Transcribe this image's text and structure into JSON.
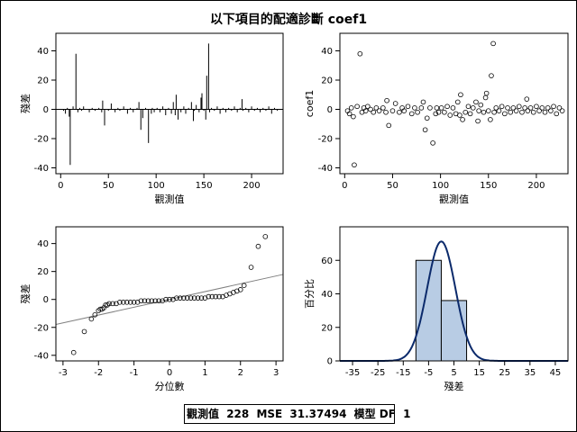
{
  "title": "以下項目的配適診斷 coef1",
  "footer": {
    "obs_label": "觀測值",
    "obs_value": "228",
    "mse_label": "MSE",
    "mse_value": "31.37494",
    "df_label": "模型 DF",
    "df_value": "1"
  },
  "colors": {
    "axis": "#000000",
    "qq_line": "#808080",
    "hist_fill": "#b8cce4",
    "hist_stroke": "#000000",
    "normal_curve": "#0b2a6b"
  },
  "chart_data": [
    {
      "type": "needle",
      "name": "residual-by-observation",
      "xlabel": "觀測值",
      "ylabel": "殘差",
      "xlim": [
        -5,
        233
      ],
      "ylim": [
        -44,
        52
      ],
      "xticks": [
        0,
        50,
        100,
        150,
        200
      ],
      "yticks": [
        -40,
        -20,
        0,
        20,
        40
      ],
      "x": [
        3,
        5,
        7,
        9,
        10,
        13,
        16,
        18,
        20,
        22,
        24,
        27,
        30,
        33,
        36,
        40,
        43,
        44,
        46,
        50,
        53,
        57,
        60,
        62,
        66,
        70,
        73,
        76,
        80,
        82,
        84,
        86,
        89,
        92,
        95,
        96,
        98,
        101,
        104,
        107,
        110,
        113,
        116,
        118,
        120,
        121,
        123,
        126,
        129,
        131,
        134,
        137,
        139,
        140,
        142,
        145,
        147,
        148,
        150,
        152,
        153,
        155,
        156,
        158,
        161,
        164,
        167,
        170,
        173,
        176,
        179,
        182,
        185,
        188,
        190,
        191,
        194,
        197,
        200,
        203,
        206,
        209,
        212,
        215,
        218,
        221,
        224,
        227
      ],
      "values": [
        -1,
        -3,
        1,
        -5,
        -38,
        2,
        38,
        -2,
        1,
        -1,
        2,
        0,
        -2,
        1,
        -1,
        1,
        -2,
        6,
        -11,
        -1,
        4,
        -2,
        1,
        -1,
        2,
        -3,
        1,
        -2,
        1,
        5,
        -14,
        -6,
        1,
        -23,
        -3,
        1,
        -2,
        1,
        -2,
        2,
        -4,
        1,
        -3,
        5,
        -4,
        10,
        -7,
        -2,
        2,
        -3,
        1,
        5,
        -8,
        -1,
        3,
        -2,
        8,
        11,
        -1,
        -7,
        23,
        45,
        -2,
        1,
        -1,
        2,
        -3,
        1,
        -2,
        1,
        -1,
        2,
        -2,
        1,
        7,
        -1,
        1,
        -2,
        2,
        -1,
        1,
        -2,
        1,
        -1,
        2,
        -3,
        1,
        -1
      ]
    },
    {
      "type": "scatter",
      "name": "coef1-by-observation",
      "xlabel": "觀測值",
      "ylabel": "coef1",
      "xlim": [
        -5,
        233
      ],
      "ylim": [
        -44,
        52
      ],
      "xticks": [
        0,
        50,
        100,
        150,
        200
      ],
      "yticks": [
        -40,
        -20,
        0,
        20,
        40
      ],
      "x": [
        3,
        5,
        7,
        9,
        10,
        13,
        16,
        18,
        20,
        22,
        24,
        27,
        30,
        33,
        36,
        40,
        43,
        44,
        46,
        50,
        53,
        57,
        60,
        62,
        66,
        70,
        73,
        76,
        80,
        82,
        84,
        86,
        89,
        92,
        95,
        96,
        98,
        101,
        104,
        107,
        110,
        113,
        116,
        118,
        120,
        121,
        123,
        126,
        129,
        131,
        134,
        137,
        139,
        140,
        142,
        145,
        147,
        148,
        150,
        152,
        153,
        155,
        156,
        158,
        161,
        164,
        167,
        170,
        173,
        176,
        179,
        182,
        185,
        188,
        190,
        191,
        194,
        197,
        200,
        203,
        206,
        209,
        212,
        215,
        218,
        221,
        224,
        227
      ],
      "values": [
        -1,
        -3,
        1,
        -5,
        -38,
        2,
        38,
        -2,
        1,
        -1,
        2,
        0,
        -2,
        1,
        -1,
        1,
        -2,
        6,
        -11,
        -1,
        4,
        -2,
        1,
        -1,
        2,
        -3,
        1,
        -2,
        1,
        5,
        -14,
        -6,
        1,
        -23,
        -3,
        1,
        -2,
        1,
        -2,
        2,
        -4,
        1,
        -3,
        5,
        -4,
        10,
        -7,
        -2,
        2,
        -3,
        1,
        5,
        -8,
        -1,
        3,
        -2,
        8,
        11,
        -1,
        -7,
        23,
        45,
        -2,
        1,
        -1,
        2,
        -3,
        1,
        -2,
        1,
        -1,
        2,
        -2,
        1,
        7,
        -1,
        1,
        -2,
        2,
        -1,
        1,
        -2,
        1,
        -1,
        2,
        -3,
        1,
        -1
      ]
    },
    {
      "type": "scatter",
      "name": "qq-plot",
      "xlabel": "分位數",
      "ylabel": "殘差",
      "xlim": [
        -3.2,
        3.2
      ],
      "ylim": [
        -44,
        52
      ],
      "xticks": [
        -3,
        -2,
        -1,
        0,
        1,
        2,
        3
      ],
      "yticks": [
        -40,
        -20,
        0,
        20,
        40
      ],
      "ref_line": [
        [
          -3.2,
          -17.9
        ],
        [
          3.2,
          17.9
        ]
      ],
      "x": [
        -2.7,
        -2.4,
        -2.2,
        -2.1,
        -2.0,
        -1.95,
        -1.9,
        -1.85,
        -1.8,
        -1.75,
        -1.7,
        -1.6,
        -1.5,
        -1.4,
        -1.3,
        -1.2,
        -1.1,
        -1.0,
        -0.9,
        -0.8,
        -0.7,
        -0.6,
        -0.5,
        -0.4,
        -0.3,
        -0.2,
        -0.1,
        0,
        0.1,
        0.2,
        0.3,
        0.4,
        0.5,
        0.6,
        0.7,
        0.8,
        0.9,
        1.0,
        1.1,
        1.2,
        1.3,
        1.4,
        1.5,
        1.6,
        1.7,
        1.8,
        1.9,
        2.0,
        2.1,
        2.3,
        2.5,
        2.7
      ],
      "values": [
        -38,
        -23,
        -14,
        -11,
        -8,
        -7,
        -7,
        -6,
        -4,
        -4,
        -3,
        -3,
        -3,
        -2,
        -2,
        -2,
        -2,
        -2,
        -2,
        -1,
        -1,
        -1,
        -1,
        -1,
        -1,
        -1,
        0,
        0,
        0,
        1,
        1,
        1,
        1,
        1,
        1,
        1,
        1,
        1,
        2,
        2,
        2,
        2,
        2,
        3,
        4,
        5,
        6,
        7,
        10,
        23,
        38,
        45
      ]
    },
    {
      "type": "histogram",
      "name": "residual-distribution",
      "xlabel": "殘差",
      "ylabel": "百分比",
      "xlim": [
        -40,
        50
      ],
      "ylim": [
        0,
        80
      ],
      "xticks": [
        -35,
        -25,
        -15,
        -5,
        5,
        15,
        25,
        35,
        45
      ],
      "yticks": [
        0,
        20,
        40,
        60
      ],
      "bins": [
        {
          "from": -10,
          "to": 0,
          "percent": 60
        },
        {
          "from": 0,
          "to": 10,
          "percent": 36
        }
      ],
      "normal_curve": {
        "mean": 0,
        "sd": 5.6,
        "bin_width": 10
      }
    }
  ]
}
